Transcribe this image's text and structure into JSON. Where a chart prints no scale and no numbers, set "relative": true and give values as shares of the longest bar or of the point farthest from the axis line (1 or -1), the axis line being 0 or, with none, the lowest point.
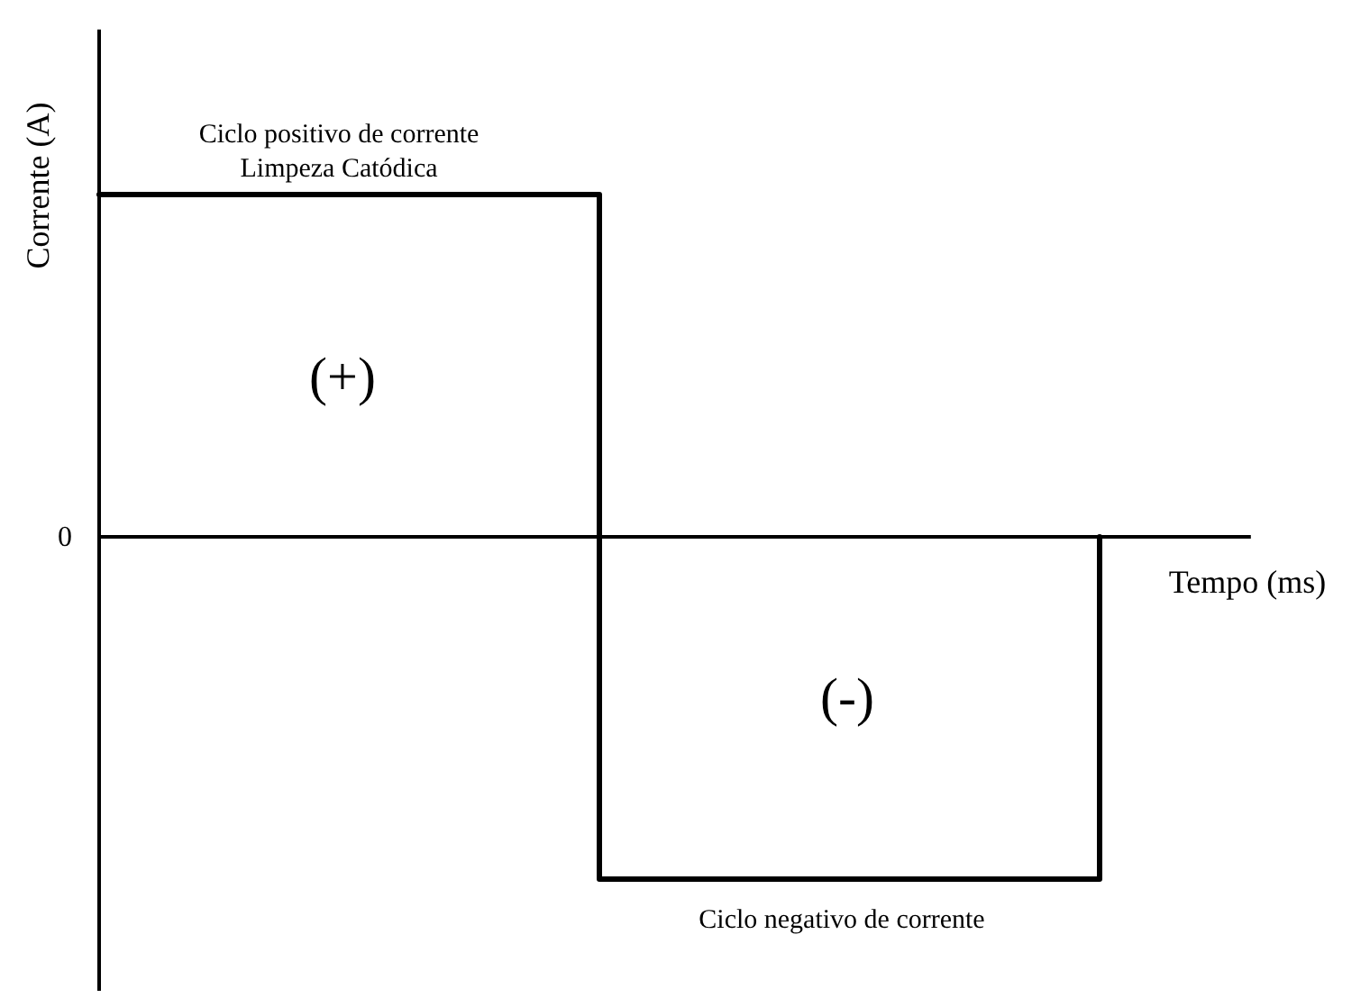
{
  "chart_data": {
    "type": "step",
    "relative": true,
    "ylabel": "Corrente (A)",
    "xlabel": "Tempo (ms)",
    "categories": [
      null,
      null,
      null
    ],
    "series": [
      {
        "color": "#000000",
        "values": [
          1,
          -1,
          0
        ]
      }
    ],
    "line_style": "solid",
    "marker": "none",
    "annotations": [
      "0",
      "Ciclo positivo de corrente\nLimpeza Catódica",
      "(+)",
      "(-)",
      "Ciclo negativo de corrente"
    ]
  }
}
